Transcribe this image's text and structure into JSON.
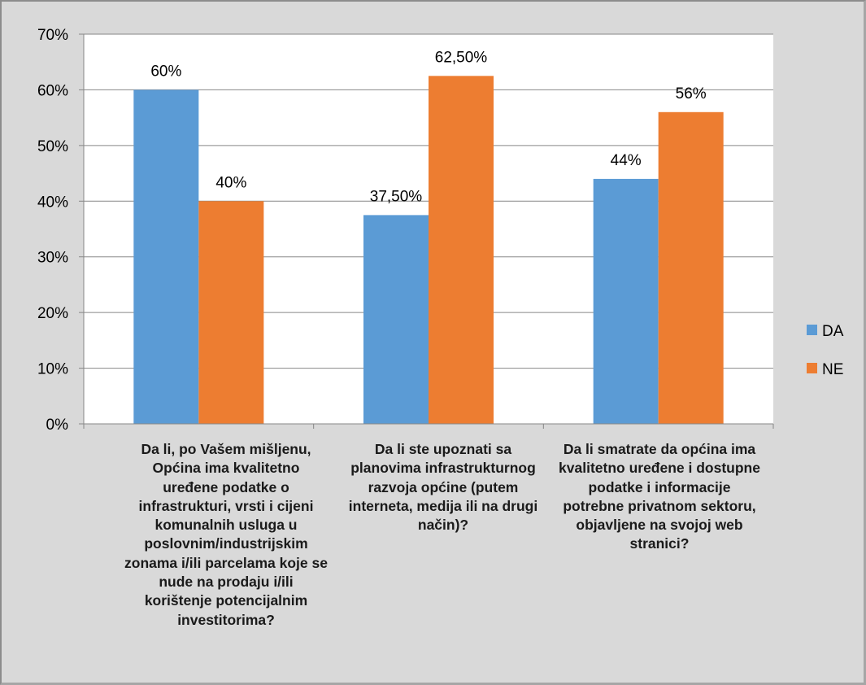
{
  "chart_data": {
    "type": "bar",
    "categories": [
      "Da li, po Vašem mišljenu, Općina ima kvalitetno uređene podatke o infrastrukturi, vrsti i cijeni komunalnih usluga u poslovnim/industrijskim zonama i/ili parcelama koje se nude na prodaju i/ili korištenje potencijalnim investitorima?",
      "Da li ste upoznati sa planovima infrastrukturnog razvoja općine (putem interneta, medija ili na drugi način)?",
      "Da li smatrate da općina ima kvalitetno uređene i dostupne podatke i informacije potrebne privatnom sektoru, objavljene na svojoj web stranici?"
    ],
    "series": [
      {
        "name": "DA",
        "color": "#5b9bd5",
        "values": [
          60,
          37.5,
          44
        ],
        "labels": [
          "60%",
          "37,50%",
          "44%"
        ]
      },
      {
        "name": "NE",
        "color": "#ed7d31",
        "values": [
          40,
          62.5,
          56
        ],
        "labels": [
          "40%",
          "62,50%",
          "56%"
        ]
      }
    ],
    "y_ticks": [
      "0%",
      "10%",
      "20%",
      "30%",
      "40%",
      "50%",
      "60%",
      "70%"
    ],
    "ylim": [
      0,
      70
    ],
    "grid": true,
    "legend_position": "right",
    "colors": {
      "background": "#d9d9d9",
      "plot_background": "#ffffff",
      "gridline": "#878787"
    }
  }
}
